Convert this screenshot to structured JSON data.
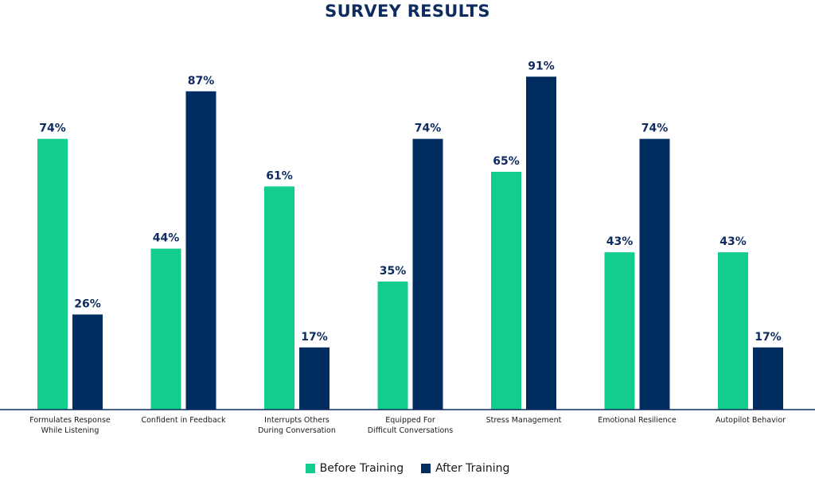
{
  "colors": {
    "before": "#12cd8b",
    "after": "#002c5f",
    "title": "#0d2b5e",
    "axis": "#0d2b5e"
  },
  "chart_data": {
    "type": "bar",
    "title": "SURVEY RESULTS",
    "categories": [
      [
        "Formulates Response",
        "While Listening"
      ],
      [
        "Confident in Feedback"
      ],
      [
        "Interrupts Others",
        "During Conversation"
      ],
      [
        "Equipped For",
        "Difficult Conversations"
      ],
      [
        "Stress Management"
      ],
      [
        "Emotional Resilience"
      ],
      [
        "Autopilot Behavior"
      ]
    ],
    "series": [
      {
        "name": "Before Training",
        "values": [
          74,
          44,
          61,
          35,
          65,
          43,
          43
        ]
      },
      {
        "name": "After Training",
        "values": [
          26,
          87,
          17,
          74,
          91,
          74,
          17
        ]
      }
    ],
    "value_suffix": "%",
    "ylim": [
      0,
      100
    ],
    "grid": false,
    "legend_position": "bottom-center"
  }
}
